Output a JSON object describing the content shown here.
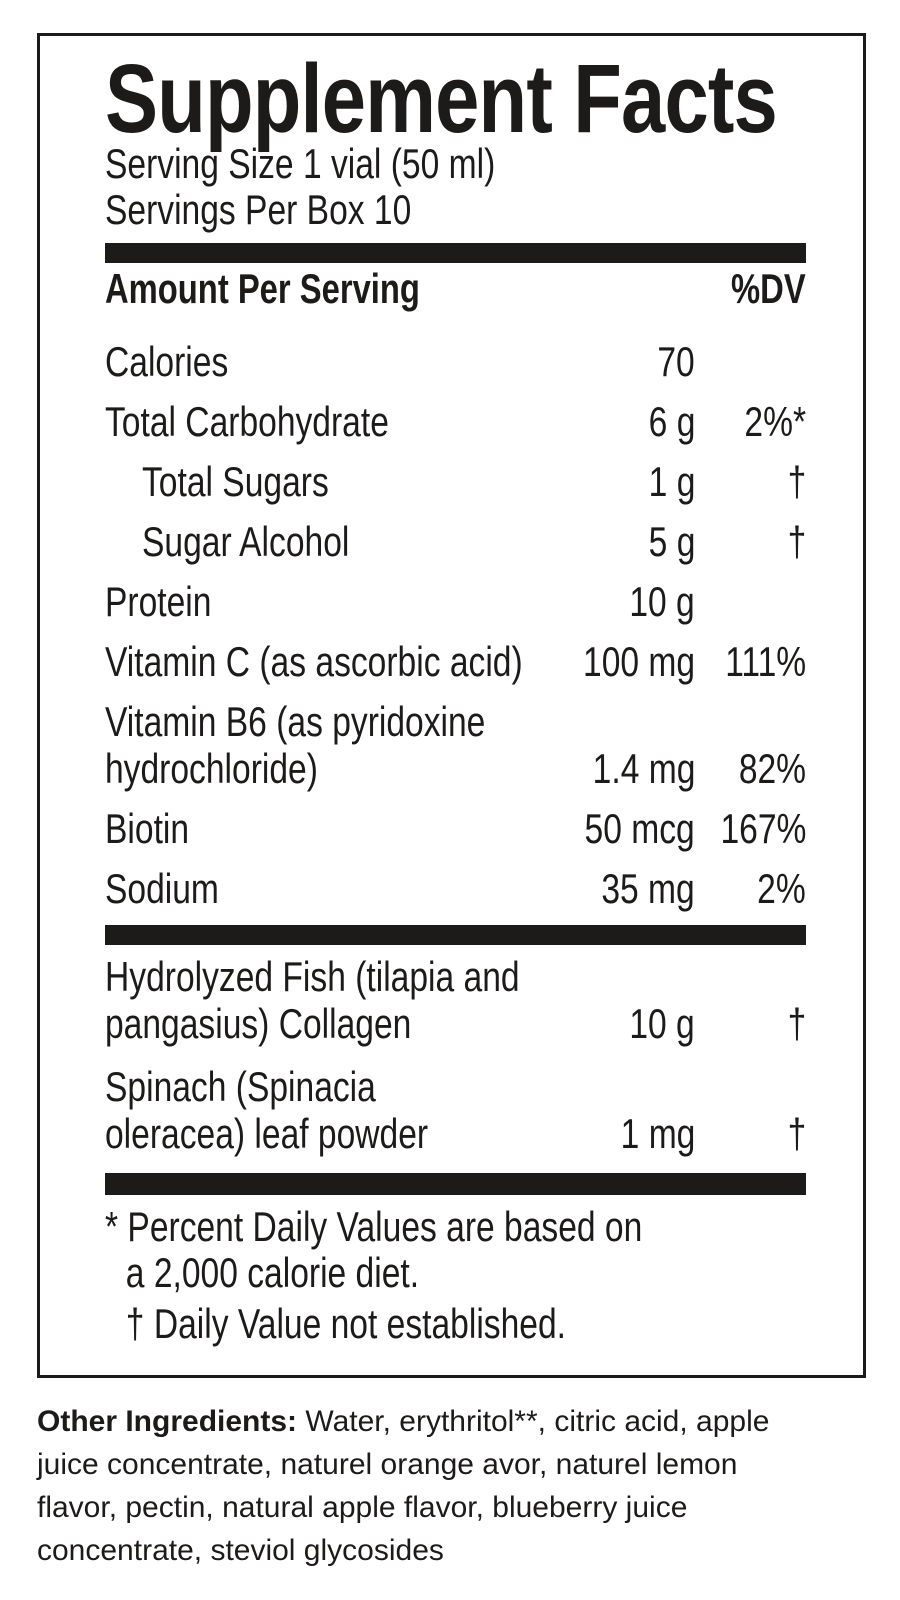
{
  "colors": {
    "ink": "#1d1b19",
    "background": "#ffffff"
  },
  "panel": {
    "title": "Supplement Facts",
    "serving_size": "Serving Size 1 vial (50 ml)",
    "servings_per": "Servings Per Box 10",
    "header": {
      "amount_label": "Amount Per Serving",
      "dv_label": "%DV"
    }
  },
  "facts": {
    "rows": [
      {
        "name": "Calories",
        "amount": "70",
        "dv": ""
      },
      {
        "name": "Total Carbohydrate",
        "amount": "6 g",
        "dv": "2%*"
      },
      {
        "name": "Total Sugars",
        "amount": "1 g",
        "dv": "†"
      },
      {
        "name": "Sugar Alcohol",
        "amount": "5 g",
        "dv": "†"
      },
      {
        "name": "Protein",
        "amount": "10 g",
        "dv": ""
      },
      {
        "name": "Vitamin C (as ascorbic acid)",
        "amount": "100 mg",
        "dv": "111%"
      },
      {
        "name": "Vitamin B6 (as pyridoxine\nhydrochloride)",
        "amount": "1.4 mg",
        "dv": "82%"
      },
      {
        "name": "Biotin",
        "amount": "50 mcg",
        "dv": "167%"
      },
      {
        "name": "Sodium",
        "amount": "35 mg",
        "dv": "2%"
      }
    ],
    "rows2": [
      {
        "name": "Hydrolyzed Fish (tilapia and\npangasius) Collagen",
        "amount": "10 g",
        "dv": "†"
      },
      {
        "name": "Spinach (Spinacia\noleracea) leaf powder",
        "amount": "1 mg",
        "dv": "†"
      }
    ]
  },
  "footnotes": {
    "daily_value": "* Percent Daily Values are based on\na 2,000 calorie diet.",
    "not_established": "† Daily Value not established."
  },
  "other_ingredients": {
    "label": "Other Ingredients:",
    "text": " Water, erythritol**, citric acid, apple juice concentrate, naturel orange avor, naturel lemon flavor, pectin, natural apple flavor, blueberry juice concentrate, steviol glycosides"
  }
}
